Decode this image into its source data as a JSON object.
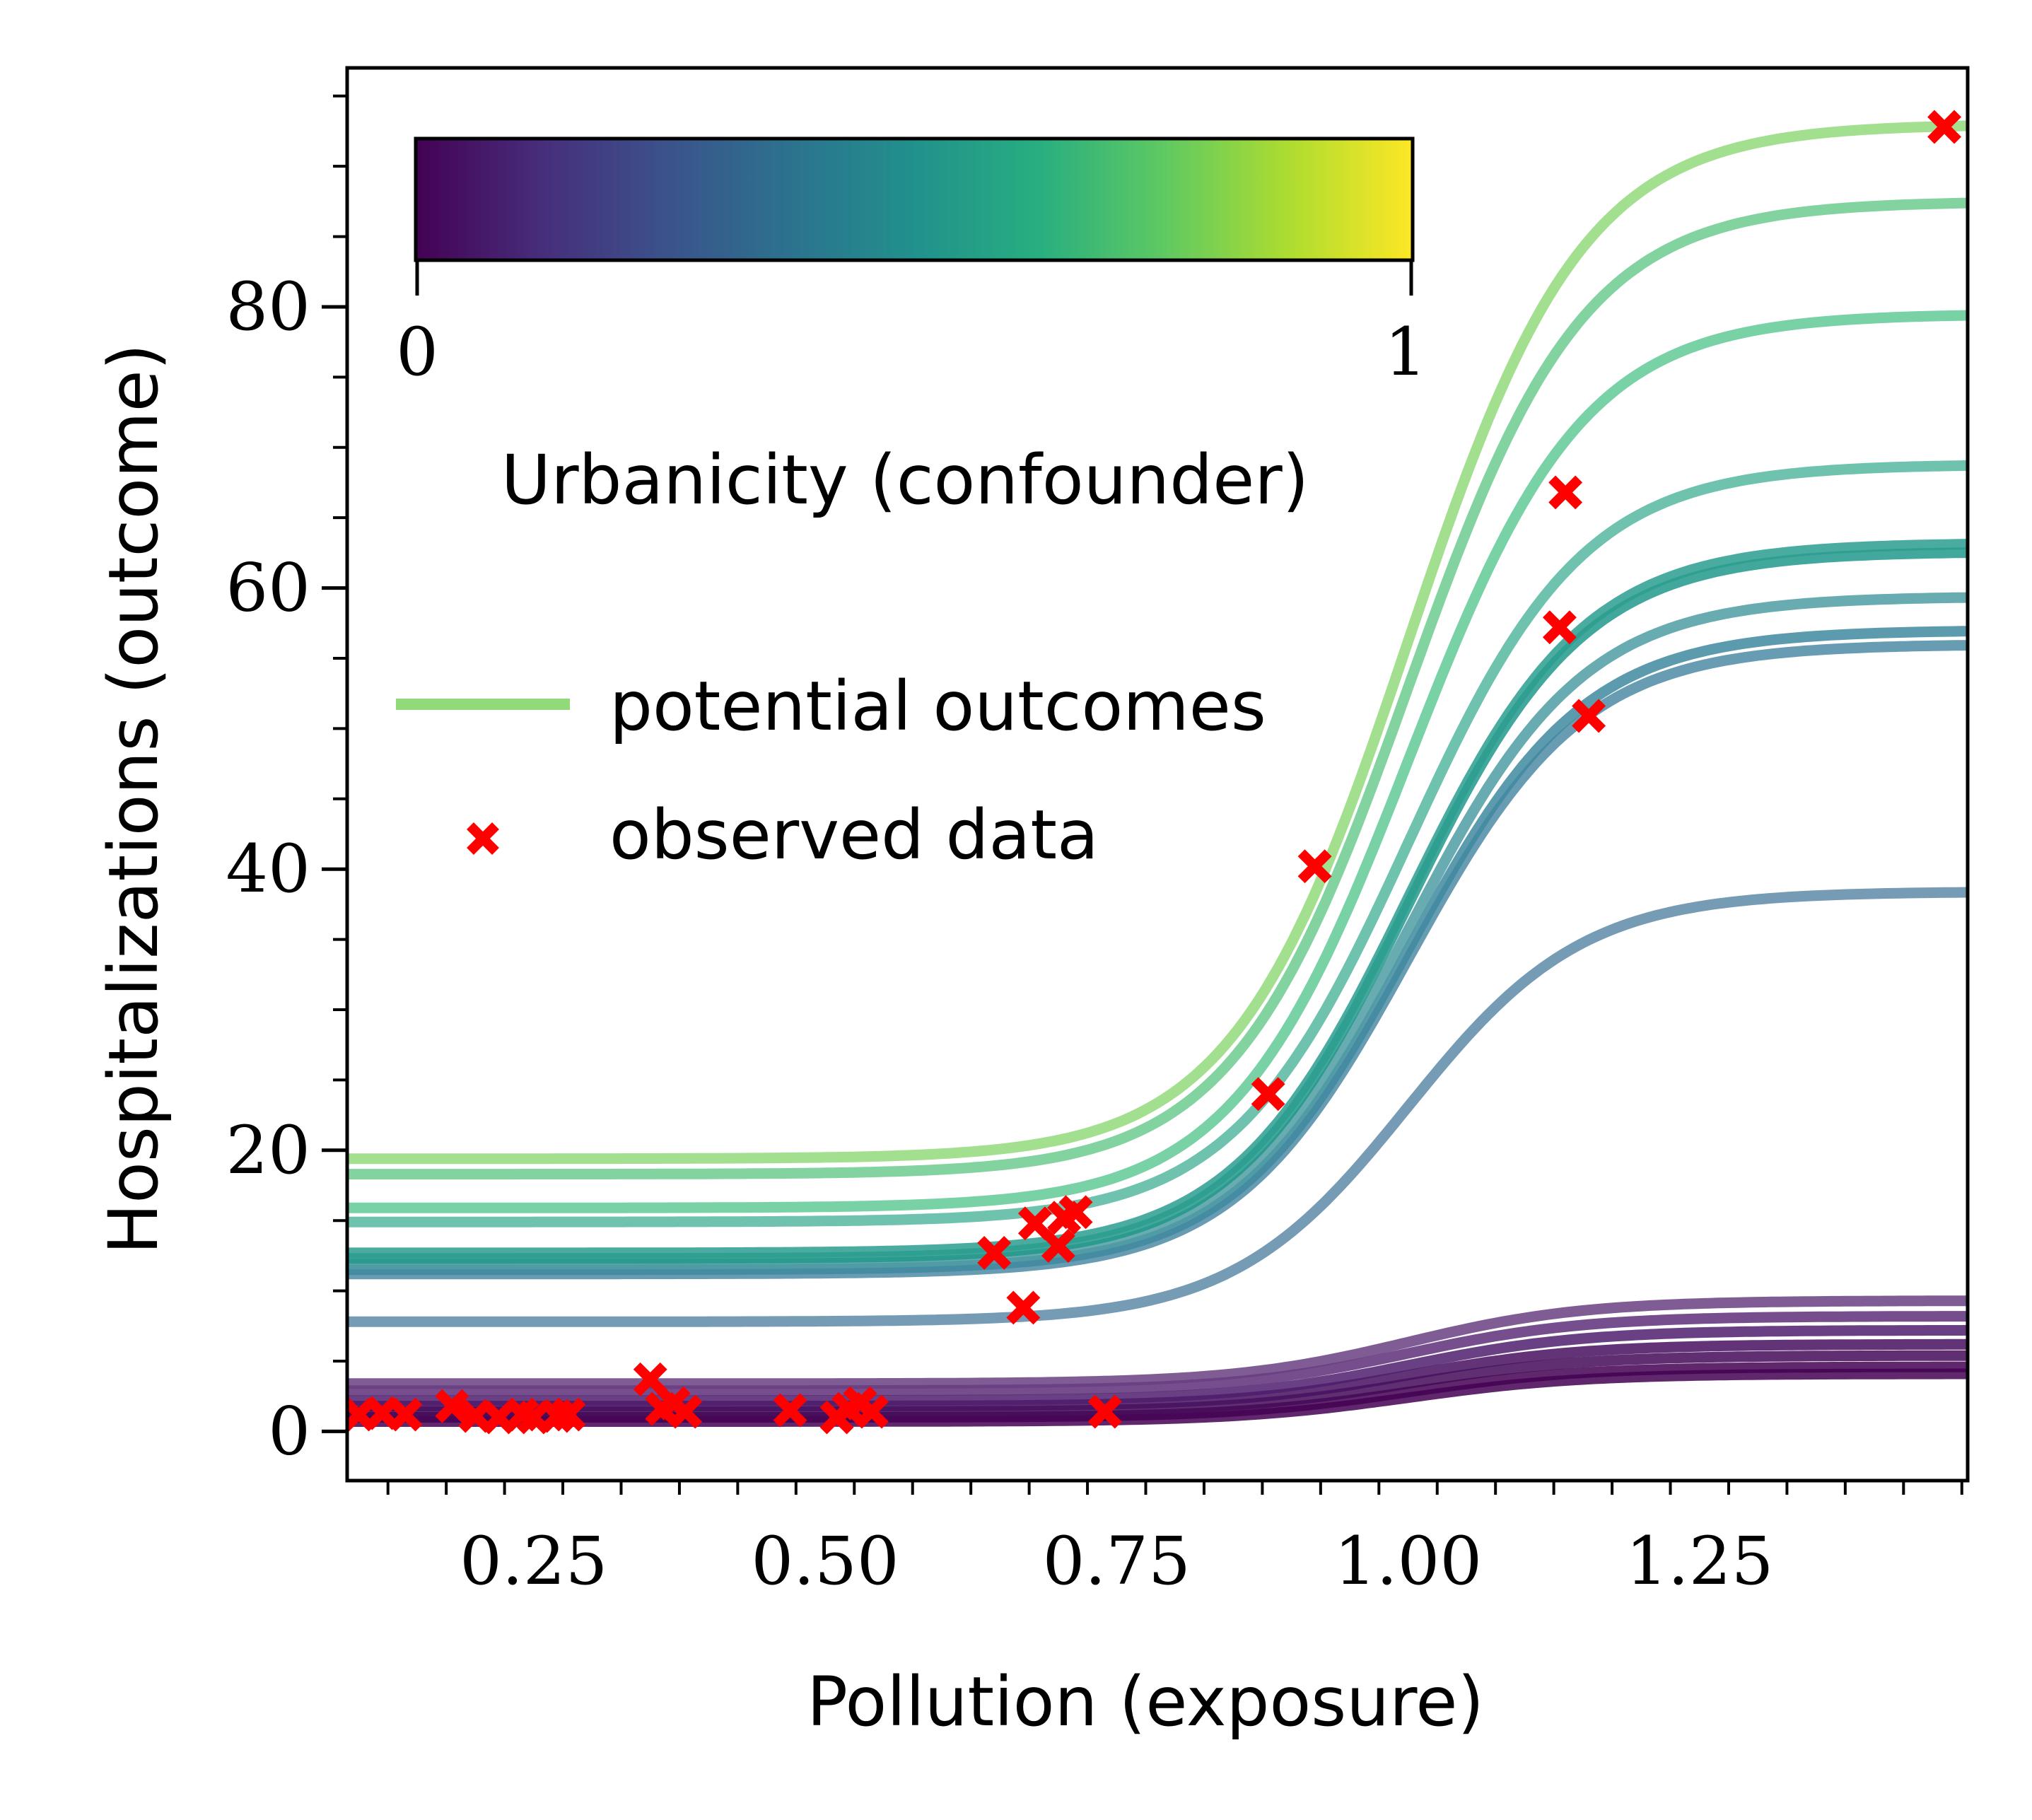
{
  "chart_data": {
    "type": "line",
    "xlabel": "Pollution (exposure)",
    "ylabel": "Hospitalizations (outcome)",
    "xlim": [
      0.09,
      1.48
    ],
    "ylim": [
      -3.5,
      97
    ],
    "x_ticks": [
      0.25,
      0.5,
      0.75,
      1.0,
      1.25
    ],
    "x_tick_labels": [
      "0.25",
      "0.50",
      "0.75",
      "1.00",
      "1.25"
    ],
    "y_ticks": [
      0,
      20,
      40,
      60,
      80
    ],
    "y_tick_labels": [
      "0",
      "20",
      "40",
      "60",
      "80"
    ],
    "legend": {
      "position": "upper-left",
      "entries": [
        {
          "label": "potential outcomes",
          "kind": "line",
          "color": "#92d97a"
        },
        {
          "label": "observed data",
          "kind": "marker",
          "color": "#ff0000"
        }
      ]
    },
    "colorbar": {
      "label": "Urbanicity (confounder)",
      "min_label": "0",
      "max_label": "1",
      "colormap": "viridis",
      "position": "top-left",
      "orientation": "horizontal"
    },
    "series": [
      {
        "urbanicity": 0.82,
        "values_at": {
          "low": 19.4,
          "high": 93.0
        },
        "color": "#92d97a"
      },
      {
        "urbanicity": 0.75,
        "values_at": {
          "low": 18.3,
          "high": 87.5
        },
        "color": "#6ccb8f"
      },
      {
        "urbanicity": 0.72,
        "values_at": {
          "low": 15.9,
          "high": 79.5
        },
        "color": "#62c996"
      },
      {
        "urbanicity": 0.66,
        "values_at": {
          "low": 14.9,
          "high": 68.8
        },
        "color": "#56b7a0"
      },
      {
        "urbanicity": 0.58,
        "values_at": {
          "low": 12.7,
          "high": 63.2
        },
        "color": "#2a9d8f"
      },
      {
        "urbanicity": 0.57,
        "values_at": {
          "low": 12.3,
          "high": 62.6
        },
        "color": "#21988b"
      },
      {
        "urbanicity": 0.52,
        "values_at": {
          "low": 11.9,
          "high": 59.4
        },
        "color": "#4e9ca3"
      },
      {
        "urbanicity": 0.48,
        "values_at": {
          "low": 11.5,
          "high": 57.0
        },
        "color": "#3f8aa0"
      },
      {
        "urbanicity": 0.46,
        "values_at": {
          "low": 11.2,
          "high": 56.0
        },
        "color": "#4c8ba5"
      },
      {
        "urbanicity": 0.38,
        "values_at": {
          "low": 7.8,
          "high": 38.4
        },
        "color": "#5d89a8"
      },
      {
        "urbanicity": 0.1,
        "values_at": {
          "low": 3.4,
          "high": 9.3
        },
        "color": "#6a3f82"
      },
      {
        "urbanicity": 0.08,
        "values_at": {
          "low": 2.9,
          "high": 8.2
        },
        "color": "#5e2f7a"
      },
      {
        "urbanicity": 0.05,
        "values_at": {
          "low": 2.2,
          "high": 7.2
        },
        "color": "#4f1f6d"
      },
      {
        "urbanicity": 0.03,
        "values_at": {
          "low": 1.8,
          "high": 6.2
        },
        "color": "#46105f"
      },
      {
        "urbanicity": 0.02,
        "values_at": {
          "low": 1.4,
          "high": 5.4
        },
        "color": "#440a58"
      },
      {
        "urbanicity": 0.01,
        "values_at": {
          "low": 1.0,
          "high": 4.6
        },
        "color": "#440154"
      },
      {
        "urbanicity": 0.0,
        "values_at": {
          "low": 0.7,
          "high": 4.1
        },
        "color": "#440154"
      }
    ],
    "observed_points": [
      {
        "x": 0.1,
        "y": 1.2
      },
      {
        "x": 0.12,
        "y": 1.3
      },
      {
        "x": 0.14,
        "y": 1.2
      },
      {
        "x": 0.18,
        "y": 1.8
      },
      {
        "x": 0.2,
        "y": 1.1
      },
      {
        "x": 0.22,
        "y": 1.0
      },
      {
        "x": 0.24,
        "y": 1.2
      },
      {
        "x": 0.25,
        "y": 1.0
      },
      {
        "x": 0.27,
        "y": 1.1
      },
      {
        "x": 0.28,
        "y": 1.2
      },
      {
        "x": 0.35,
        "y": 3.7
      },
      {
        "x": 0.36,
        "y": 1.6
      },
      {
        "x": 0.37,
        "y": 2.0
      },
      {
        "x": 0.38,
        "y": 1.4
      },
      {
        "x": 0.47,
        "y": 1.5
      },
      {
        "x": 0.51,
        "y": 1.0
      },
      {
        "x": 0.52,
        "y": 1.6
      },
      {
        "x": 0.53,
        "y": 2.0
      },
      {
        "x": 0.54,
        "y": 1.4
      },
      {
        "x": 0.645,
        "y": 12.7
      },
      {
        "x": 0.67,
        "y": 8.8
      },
      {
        "x": 0.68,
        "y": 14.8
      },
      {
        "x": 0.7,
        "y": 13.2
      },
      {
        "x": 0.705,
        "y": 15.2
      },
      {
        "x": 0.715,
        "y": 15.6
      },
      {
        "x": 0.74,
        "y": 1.4
      },
      {
        "x": 0.88,
        "y": 24.0
      },
      {
        "x": 0.92,
        "y": 40.2
      },
      {
        "x": 1.13,
        "y": 57.2
      },
      {
        "x": 1.135,
        "y": 66.8
      },
      {
        "x": 1.155,
        "y": 50.9
      },
      {
        "x": 1.46,
        "y": 92.8
      }
    ]
  }
}
